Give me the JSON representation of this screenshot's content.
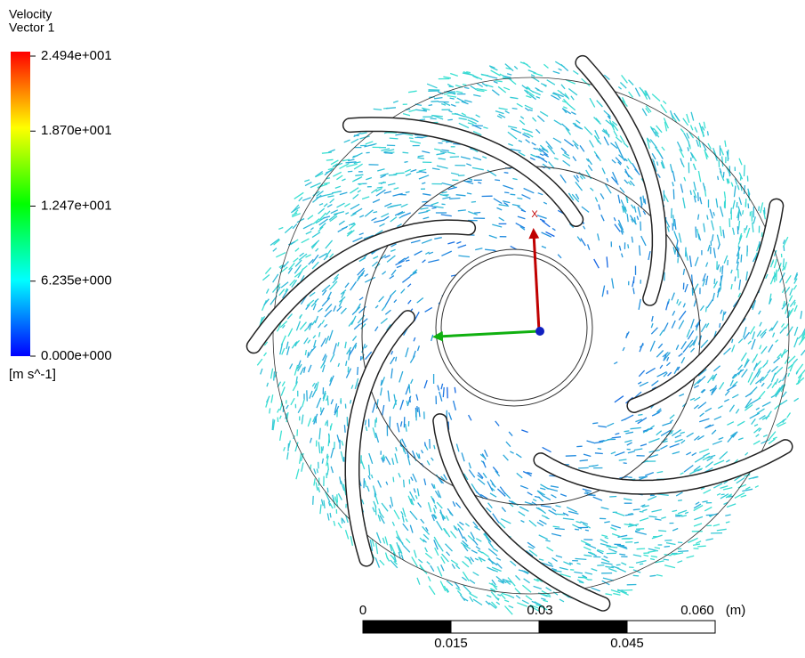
{
  "legend": {
    "title": "Velocity",
    "subtitle": "Vector 1",
    "labels": [
      "2.494e+001",
      "1.870e+001",
      "1.247e+001",
      "6.235e+000",
      "0.000e+000"
    ],
    "unit": "[m s^-1]"
  },
  "axis_triad": {
    "x_label": "X"
  },
  "scale_bar": {
    "top_labels": [
      "0",
      "0.03",
      "0.060"
    ],
    "unit": "(m)",
    "bottom_labels": [
      "0.015",
      "0.045"
    ]
  }
}
